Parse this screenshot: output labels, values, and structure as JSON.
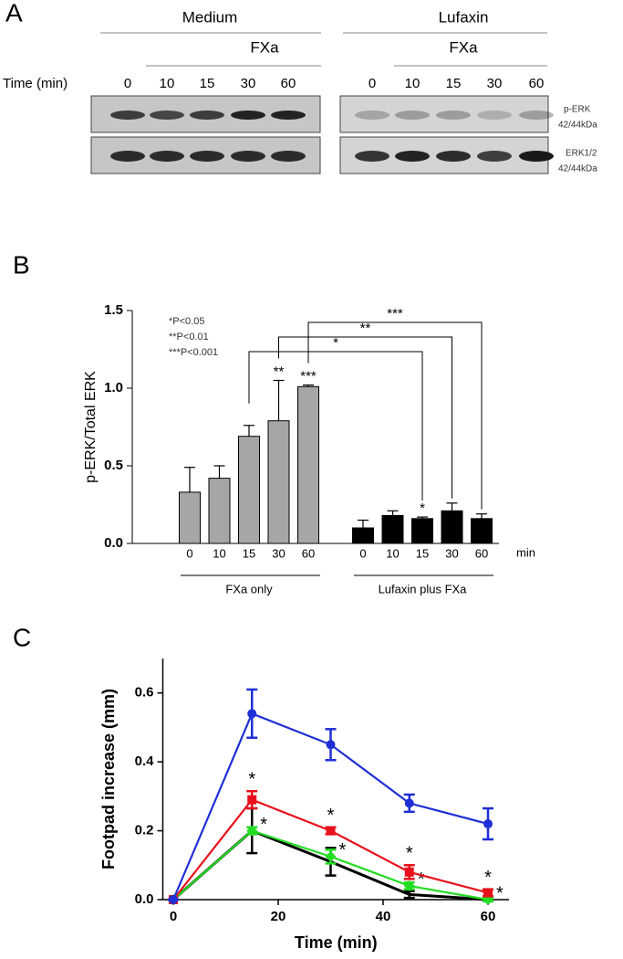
{
  "panel_a": {
    "label": "A",
    "groups": [
      {
        "name": "Medium",
        "treatment": "FXa"
      },
      {
        "name": "Lufaxin",
        "treatment": "FXa"
      }
    ],
    "time_label": "Time (min)",
    "lanes": [
      "0",
      "10",
      "15",
      "30",
      "60"
    ],
    "blots": [
      {
        "name": "p-ERK",
        "size": "42/44kDa"
      },
      {
        "name": "ERK1/2",
        "size": "42/44kDa"
      }
    ]
  },
  "chart_data": [
    {
      "type": "bar",
      "panel_label": "B",
      "ylabel": "p-ERK/Total ERK",
      "categories": [
        "0",
        "10",
        "15",
        "30",
        "60"
      ],
      "xunit": "min",
      "ylim": [
        0,
        1.5
      ],
      "yticks": [
        {
          "value": 0,
          "label": "0.0"
        },
        {
          "value": 0.5,
          "label": "0.5"
        },
        {
          "value": 1,
          "label": "1.0"
        },
        {
          "value": 1.5,
          "label": "1.5"
        }
      ],
      "notes": [
        "*P<0.05",
        "**P<0.01",
        "***P<0.001"
      ],
      "bracket_labels": [
        "*",
        "**",
        "***"
      ],
      "series": [
        {
          "name": "FXa only",
          "color": "#a6a6a6",
          "values": [
            0.33,
            0.42,
            0.69,
            0.79,
            1.01
          ],
          "errors": [
            0.16,
            0.08,
            0.07,
            0.26,
            0.01
          ],
          "sig_labels": [
            null,
            null,
            null,
            "**",
            "***"
          ]
        },
        {
          "name": "Lufaxin plus FXa",
          "color": "#000000",
          "values": [
            0.1,
            0.18,
            0.16,
            0.21,
            0.16
          ],
          "errors": [
            0.05,
            0.03,
            0.01,
            0.05,
            0.03
          ],
          "sig_labels": [
            null,
            null,
            "*",
            null,
            null
          ]
        }
      ]
    },
    {
      "type": "line",
      "panel_label": "C",
      "xlabel": "Time (min)",
      "ylabel": "Footpad increase (mm)",
      "x": [
        0,
        15,
        30,
        45,
        60
      ],
      "xlim": [
        -2,
        64
      ],
      "xticks": [
        0,
        20,
        40,
        60
      ],
      "ylim": [
        0,
        0.7
      ],
      "yticks": [
        {
          "value": 0,
          "label": "0.0"
        },
        {
          "value": 0.2,
          "label": "0.2"
        },
        {
          "value": 0.4,
          "label": "0.4"
        },
        {
          "value": 0.6,
          "label": "0.6"
        }
      ],
      "series": [
        {
          "color": "#1f2fd6",
          "marker": "circle",
          "values": [
            0,
            0.54,
            0.45,
            0.28,
            0.22
          ],
          "errors": [
            0,
            0.07,
            0.045,
            0.025,
            0.045
          ]
        },
        {
          "color": "#e8111b",
          "marker": "square",
          "values": [
            0,
            0.29,
            0.2,
            0.08,
            0.02
          ],
          "errors": [
            0,
            0.025,
            0.01,
            0.02,
            0.01
          ],
          "sig_labels": [
            null,
            "*",
            "*",
            "*",
            "*"
          ],
          "sig_position": "above"
        },
        {
          "color": "#22dd22",
          "marker": "diamond",
          "values": [
            0,
            0.2,
            0.125,
            0.04,
            0
          ],
          "errors": [
            0,
            0.01,
            0.02,
            0.01,
            0.005
          ],
          "sig_labels": [
            null,
            "*",
            "*",
            "*",
            "*"
          ],
          "sig_position": "right"
        },
        {
          "color": "#000000",
          "marker": "none",
          "values": [
            0,
            0.2,
            0.11,
            0.015,
            0
          ],
          "errors": [
            0,
            0.065,
            0.04,
            0.01,
            0
          ]
        }
      ]
    }
  ]
}
